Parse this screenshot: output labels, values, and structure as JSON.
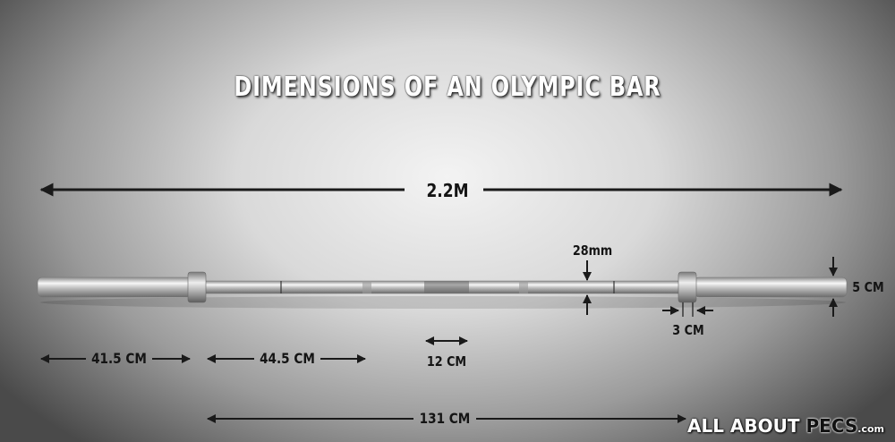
{
  "title": "DIMENSIONS OF AN OLYMPIC BAR",
  "labels": {
    "total_length": "2.2M",
    "shaft_diameter": "28mm",
    "sleeve_diameter": "5 CM",
    "collar_width": "3 CM",
    "sleeve_length": "41.5 CM",
    "grip_section": "44.5 CM",
    "center_knurl": "12 CM",
    "shaft_length": "131 CM"
  },
  "logo": {
    "part1": "ALL ABOUT ",
    "part2": "PECS",
    "part3": ".com"
  }
}
